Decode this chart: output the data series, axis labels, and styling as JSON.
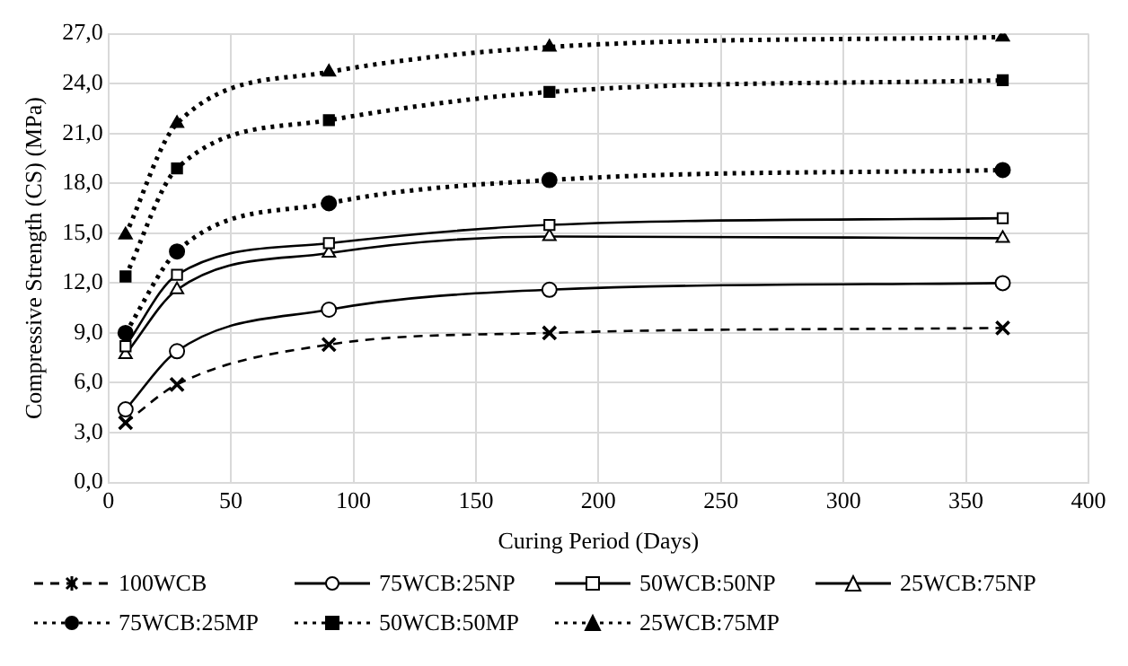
{
  "chart_data": {
    "type": "line",
    "xlabel": "Curing Period (Days)",
    "ylabel": "Compressive Strength (CS) (MPa)",
    "x": [
      7,
      28,
      90,
      180,
      365
    ],
    "xlim": [
      0,
      400
    ],
    "xticks": [
      0,
      50,
      100,
      150,
      200,
      250,
      300,
      350,
      400
    ],
    "ylim": [
      0,
      27
    ],
    "yticks": [
      {
        "value": 0,
        "label": "0,0"
      },
      {
        "value": 3,
        "label": "3,0"
      },
      {
        "value": 6,
        "label": "6,0"
      },
      {
        "value": 9,
        "label": "9,0"
      },
      {
        "value": 12,
        "label": "12,0"
      },
      {
        "value": 15,
        "label": "15,0"
      },
      {
        "value": 18,
        "label": "18,0"
      },
      {
        "value": 21,
        "label": "21,0"
      },
      {
        "value": 24,
        "label": "24,0"
      },
      {
        "value": 27,
        "label": "27,0"
      }
    ],
    "grid": true,
    "legend": "bottom",
    "series": [
      {
        "name": "100WCB",
        "color": "#000000",
        "marker": "cross",
        "line_style": "dashed",
        "values": [
          3.6,
          5.9,
          8.3,
          9.0,
          9.3
        ]
      },
      {
        "name": "75WCB:25NP",
        "color": "#000000",
        "marker": "circle",
        "line_style": "solid",
        "values": [
          4.4,
          7.9,
          10.4,
          11.6,
          12.0
        ]
      },
      {
        "name": "50WCB:50NP",
        "color": "#000000",
        "marker": "square",
        "line_style": "solid",
        "values": [
          8.2,
          12.5,
          14.4,
          15.5,
          15.9
        ]
      },
      {
        "name": "25WCB:75NP",
        "color": "#000000",
        "marker": "triangle",
        "line_style": "solid",
        "values": [
          7.7,
          11.6,
          13.8,
          14.8,
          14.7
        ]
      },
      {
        "name": "75WCB:25MP",
        "color": "#000000",
        "marker": "circle",
        "line_style": "dotted",
        "values": [
          9.0,
          13.9,
          16.8,
          18.2,
          18.8
        ]
      },
      {
        "name": "50WCB:50MP",
        "color": "#000000",
        "marker": "square",
        "line_style": "dotted",
        "values": [
          12.4,
          18.9,
          21.8,
          23.5,
          24.2
        ]
      },
      {
        "name": "25WCB:75MP",
        "color": "#000000",
        "marker": "triangle",
        "line_style": "dotted",
        "values": [
          14.9,
          21.6,
          24.7,
          26.2,
          26.8
        ]
      }
    ]
  }
}
